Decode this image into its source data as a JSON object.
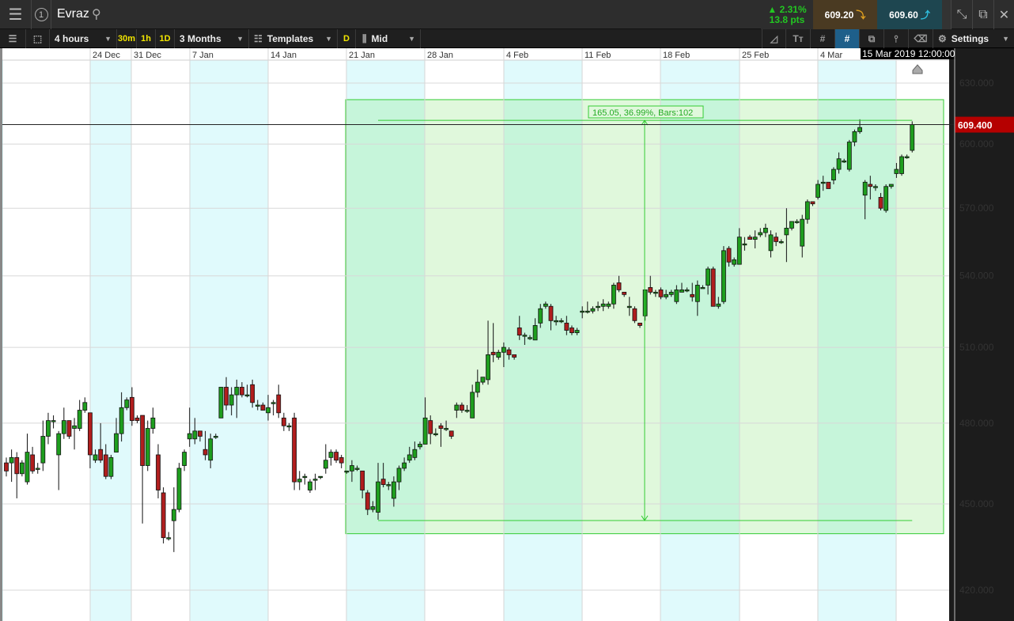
{
  "header": {
    "instrument": "Evraz",
    "change_pct": "▲ 2.31%",
    "change_pts": "13.8 pts",
    "sell_price": "609.20",
    "buy_price": "609.60",
    "colors": {
      "up": "#22c722",
      "sell_bg": "#4a3a22",
      "buy_bg": "#1e4650"
    }
  },
  "toolbar": {
    "interval": "4 hours",
    "quick_30m": "30m",
    "quick_1h": "1h",
    "quick_1d": "1D",
    "range": "3 Months",
    "templates": "Templates",
    "d_label": "D",
    "price_type": "Mid",
    "settings": "Settings"
  },
  "chart_data": {
    "type": "candlestick",
    "timeframe": "4 hours",
    "y_scale": "log",
    "ylim": [
      417,
      640
    ],
    "grid": true,
    "x_tick_labels": [
      "24 Dec",
      "31 Dec",
      "7 Jan",
      "14 Jan",
      "21 Jan",
      "28 Jan",
      "4 Feb",
      "11 Feb",
      "18 Feb",
      "25 Feb",
      "4 Mar"
    ],
    "y_tick_labels": [
      "630.000",
      "600.000",
      "570.000",
      "540.000",
      "510.000",
      "480.000",
      "450.000",
      "420.000"
    ],
    "y_ticks": [
      630,
      600,
      570,
      540,
      510,
      480,
      450,
      420
    ],
    "crosshair_time": "15 Mar 2019 12:00:00",
    "last_price": 609.4,
    "last_price_label": "609.400",
    "colors": {
      "up": "#1e9e1e",
      "down": "#b01e1e",
      "last_price": "#b50000",
      "measure": "#33cc33"
    },
    "measurement": {
      "label": "165.05, 36.99%, Bars:102",
      "from_price": 444.35,
      "to_price": 609.4,
      "bars": 102
    },
    "candles_ohlc": [
      [
        465,
        467,
        460,
        462
      ],
      [
        465,
        470,
        458,
        467
      ],
      [
        467,
        469,
        452,
        461
      ],
      [
        461,
        466,
        460,
        465
      ],
      [
        458,
        476,
        457,
        469
      ],
      [
        468,
        471,
        461,
        462
      ],
      [
        463,
        465,
        461,
        463
      ],
      [
        465,
        481,
        462,
        475
      ],
      [
        475,
        484,
        472,
        481
      ],
      [
        481,
        483,
        478,
        481
      ],
      [
        468,
        477,
        455,
        476
      ],
      [
        476,
        486,
        474,
        481
      ],
      [
        481,
        481,
        474,
        475
      ],
      [
        478,
        482,
        470,
        479
      ],
      [
        478,
        489,
        477,
        485
      ],
      [
        485,
        490,
        484,
        488
      ],
      [
        484,
        484,
        463,
        468
      ],
      [
        466,
        470,
        465,
        468
      ],
      [
        470,
        480,
        465,
        466
      ],
      [
        468,
        472,
        459,
        460
      ],
      [
        460,
        468,
        459,
        467
      ],
      [
        469,
        482,
        469,
        476
      ],
      [
        476,
        492,
        473,
        486
      ],
      [
        486,
        490,
        485,
        489
      ],
      [
        490,
        494,
        479,
        481
      ],
      [
        482,
        483,
        480,
        481
      ],
      [
        483,
        483,
        443,
        464
      ],
      [
        464,
        481,
        462,
        478
      ],
      [
        478,
        486,
        476,
        482
      ],
      [
        468,
        472,
        452,
        455
      ],
      [
        454,
        456,
        436,
        438
      ],
      [
        438,
        440,
        437,
        438
      ],
      [
        444,
        456,
        433,
        448
      ],
      [
        448,
        465,
        447,
        463
      ],
      [
        464,
        470,
        462,
        469
      ],
      [
        474,
        486,
        471,
        476
      ],
      [
        474,
        482,
        472,
        477
      ],
      [
        477,
        477,
        473,
        475
      ],
      [
        470,
        477,
        466,
        468
      ],
      [
        466,
        476,
        463,
        474
      ],
      [
        475,
        476,
        474,
        475
      ],
      [
        482,
        494,
        482,
        494
      ],
      [
        494,
        498,
        485,
        487
      ],
      [
        487,
        494,
        483,
        491
      ],
      [
        491,
        497,
        482,
        494
      ],
      [
        494,
        496,
        490,
        491
      ],
      [
        491,
        495,
        490,
        491
      ],
      [
        495,
        497,
        486,
        488
      ],
      [
        487,
        489,
        485,
        487
      ],
      [
        487,
        488,
        485,
        485
      ],
      [
        484,
        491,
        481,
        486
      ],
      [
        488,
        489,
        483,
        488
      ],
      [
        491,
        495,
        482,
        484
      ],
      [
        482,
        484,
        477,
        479
      ],
      [
        479,
        480,
        477,
        479
      ],
      [
        482,
        484,
        455,
        458
      ],
      [
        458,
        462,
        455,
        459
      ],
      [
        460,
        461,
        457,
        460
      ],
      [
        455,
        459,
        454,
        458
      ],
      [
        459,
        461,
        455,
        459
      ],
      [
        460,
        460,
        459,
        460
      ],
      [
        463,
        472,
        461,
        466
      ],
      [
        467,
        470,
        464,
        469
      ],
      [
        469,
        470,
        465,
        466
      ],
      [
        467,
        468,
        463,
        465
      ],
      [
        462,
        462,
        461,
        462
      ],
      [
        462,
        466,
        458,
        464
      ],
      [
        463,
        464,
        462,
        463
      ],
      [
        462,
        462,
        452,
        455
      ],
      [
        454,
        455,
        446,
        448
      ],
      [
        448,
        451,
        447,
        449
      ],
      [
        447,
        465,
        444.35,
        458
      ],
      [
        459,
        465,
        456,
        457
      ],
      [
        457,
        458,
        455,
        457
      ],
      [
        452,
        460,
        449,
        458
      ],
      [
        458,
        464,
        455,
        463
      ],
      [
        463,
        467,
        462,
        465
      ],
      [
        466,
        471,
        465,
        468
      ],
      [
        467,
        473,
        466,
        470
      ],
      [
        471,
        473,
        470,
        472
      ],
      [
        472,
        490,
        472,
        482
      ],
      [
        481,
        483,
        472,
        476
      ],
      [
        476,
        478,
        475,
        476
      ],
      [
        479,
        480,
        471,
        478
      ],
      [
        478,
        481,
        477,
        478
      ],
      [
        477,
        477,
        474,
        475
      ],
      [
        485,
        488,
        482,
        487
      ],
      [
        487,
        488,
        484,
        485
      ],
      [
        485,
        487,
        484,
        485
      ],
      [
        482,
        495,
        482,
        492
      ],
      [
        492,
        501,
        490,
        496
      ],
      [
        496,
        498,
        495,
        498
      ],
      [
        497,
        521,
        495,
        507
      ],
      [
        508,
        520,
        504,
        507
      ],
      [
        506,
        509,
        505,
        508
      ],
      [
        508,
        512,
        502,
        510
      ],
      [
        509,
        510,
        505,
        507
      ],
      [
        507,
        507,
        505,
        506
      ],
      [
        518,
        523,
        513,
        515
      ],
      [
        515,
        516,
        511,
        515
      ],
      [
        514,
        515,
        513,
        514
      ],
      [
        513,
        522,
        513,
        519
      ],
      [
        520,
        528,
        518,
        526
      ],
      [
        527,
        529,
        526,
        528
      ],
      [
        527,
        528,
        517,
        521
      ],
      [
        521,
        523,
        519,
        521
      ],
      [
        521,
        522,
        520,
        521
      ],
      [
        520,
        523,
        515,
        517
      ],
      [
        518,
        519,
        515,
        516
      ],
      [
        516,
        518,
        515,
        517
      ],
      [
        525,
        527,
        522,
        525
      ],
      [
        525,
        529,
        524,
        525
      ],
      [
        525,
        527,
        524,
        526
      ],
      [
        527,
        529,
        525,
        527
      ],
      [
        527,
        530,
        525,
        528
      ],
      [
        527,
        529,
        526,
        528
      ],
      [
        528,
        537,
        526,
        536
      ],
      [
        537,
        540,
        533,
        534
      ],
      [
        533,
        533,
        531,
        532
      ],
      [
        527,
        531,
        523,
        527
      ],
      [
        526,
        527,
        520,
        521
      ],
      [
        520,
        520,
        518,
        519
      ],
      [
        523,
        534,
        521,
        534
      ],
      [
        535,
        540,
        532,
        533
      ],
      [
        533,
        534,
        531,
        533
      ],
      [
        534,
        535,
        530,
        531
      ],
      [
        531,
        534,
        530,
        532
      ],
      [
        532,
        534,
        531,
        533
      ],
      [
        529,
        536,
        528,
        534
      ],
      [
        533,
        537,
        533,
        534
      ],
      [
        534,
        535,
        533,
        534
      ],
      [
        532,
        537,
        529,
        531
      ],
      [
        529,
        538,
        523,
        536
      ],
      [
        535,
        536,
        535,
        535
      ],
      [
        536,
        544,
        532,
        543
      ],
      [
        543,
        544,
        527,
        527
      ],
      [
        527,
        531,
        526,
        528
      ],
      [
        529,
        553,
        528,
        551
      ],
      [
        552,
        553,
        544,
        546
      ],
      [
        545,
        548,
        544,
        547
      ],
      [
        545,
        561,
        545,
        557
      ],
      [
        554,
        557,
        551,
        554
      ],
      [
        557,
        558,
        556,
        556
      ],
      [
        556,
        560,
        552,
        557
      ],
      [
        558,
        561,
        557,
        559
      ],
      [
        559,
        563,
        557,
        561
      ],
      [
        551,
        560,
        548,
        558
      ],
      [
        557,
        559,
        553,
        555
      ],
      [
        555,
        556,
        554,
        555
      ],
      [
        558,
        570,
        546,
        561
      ],
      [
        561,
        564,
        560,
        564
      ],
      [
        564,
        565,
        563,
        564
      ],
      [
        553,
        567,
        548,
        565
      ],
      [
        565,
        574,
        563,
        573
      ],
      [
        573,
        573,
        571,
        572
      ],
      [
        575,
        583,
        574,
        581
      ],
      [
        582,
        585,
        578,
        582
      ],
      [
        582,
        582,
        579,
        579
      ],
      [
        583,
        589,
        581,
        588
      ],
      [
        588,
        596,
        586,
        593
      ],
      [
        592,
        593,
        591,
        592
      ],
      [
        588,
        602,
        587,
        601
      ],
      [
        601,
        607,
        599,
        606
      ],
      [
        606,
        612,
        605,
        608
      ],
      [
        576,
        583,
        565,
        582
      ],
      [
        581,
        585,
        574,
        580
      ],
      [
        580,
        581,
        578,
        580
      ],
      [
        575,
        577,
        569,
        570
      ],
      [
        569,
        581,
        568,
        580
      ],
      [
        580,
        581,
        579,
        581
      ],
      [
        586,
        591,
        584,
        588
      ],
      [
        586,
        595,
        585,
        594
      ],
      [
        594,
        595,
        593,
        594
      ],
      [
        597,
        611,
        596,
        609.4
      ]
    ]
  }
}
